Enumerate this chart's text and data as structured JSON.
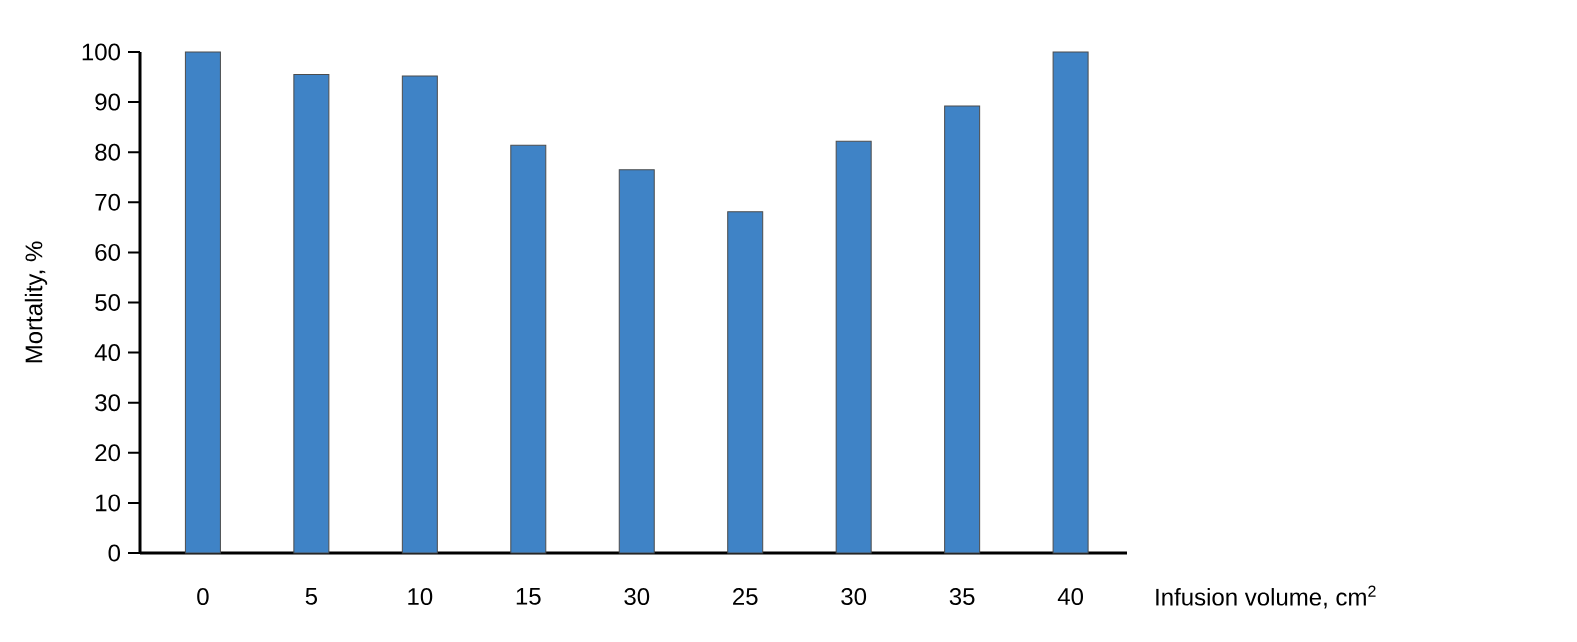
{
  "chart_data": {
    "type": "bar",
    "xlabel": "Infusion volume, cm$^{2}$",
    "ylabel": "Mortality, %",
    "categories": [
      "0",
      "5",
      "10",
      "15",
      "30",
      "25",
      "30",
      "35",
      "40"
    ],
    "values": [
      100,
      95.5,
      95.2,
      81.4,
      76.5,
      68.1,
      82.2,
      89.2,
      100
    ],
    "color": "#3f83c6",
    "ylim": [
      0,
      100
    ],
    "yticks": [
      0,
      10,
      20,
      30,
      40,
      50,
      60,
      70,
      80,
      90,
      100
    ]
  }
}
